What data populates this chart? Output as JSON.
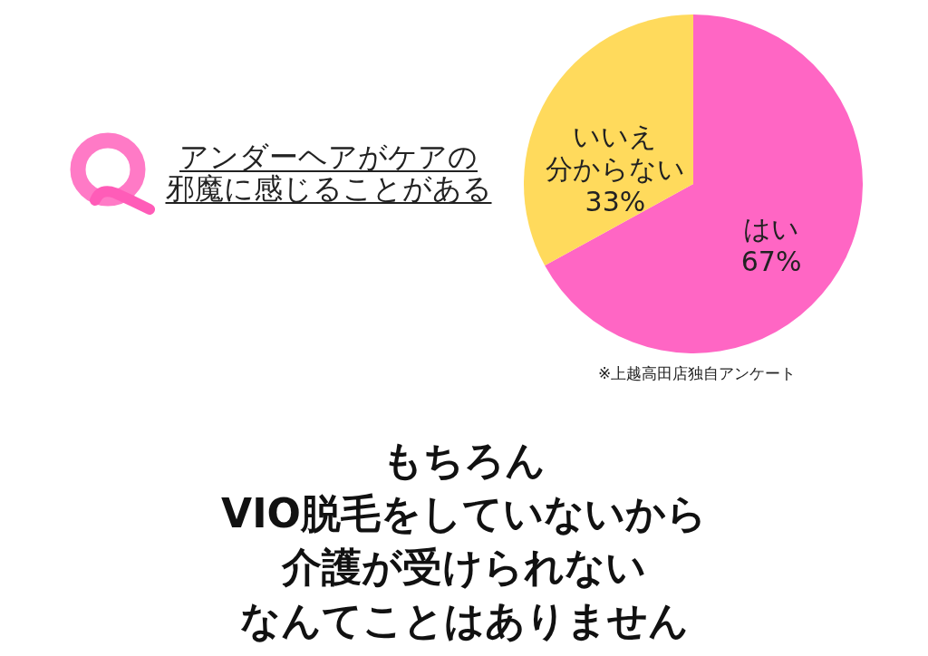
{
  "chart_data": {
    "type": "pie",
    "title": "アンダーヘアがケアの邪魔に感じることがある",
    "categories": [
      "はい",
      "いいえ分からない"
    ],
    "values": [
      67,
      33
    ],
    "colors": [
      "#ff66c4",
      "#ffda5c"
    ],
    "value_labels": [
      "67%",
      "33%"
    ],
    "annotations": [
      "※上越高田店独自アンケート",
      "もちろん",
      "VIO脱毛をしていないから",
      "介護が受けられない",
      "なんてことはありません"
    ]
  }
}
